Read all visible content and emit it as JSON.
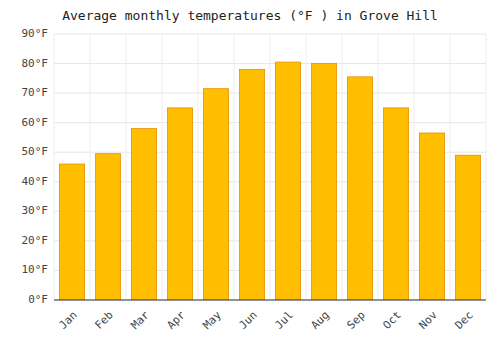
{
  "chart_data": {
    "type": "bar",
    "title": "Average monthly temperatures (°F ) in Grove Hill",
    "categories": [
      "Jan",
      "Feb",
      "Mar",
      "Apr",
      "May",
      "Jun",
      "Jul",
      "Aug",
      "Sep",
      "Oct",
      "Nov",
      "Dec"
    ],
    "values": [
      46,
      49.5,
      58,
      65,
      71.5,
      78,
      80.5,
      80,
      75.5,
      65,
      56.5,
      49
    ],
    "color": "#FFBE00",
    "ylim": [
      0,
      90
    ],
    "yticks": [
      {
        "value": 0,
        "label": "0°F"
      },
      {
        "value": 10,
        "label": "10°F"
      },
      {
        "value": 20,
        "label": "20°F"
      },
      {
        "value": 30,
        "label": "30°F"
      },
      {
        "value": 40,
        "label": "40°F"
      },
      {
        "value": 50,
        "label": "50°F"
      },
      {
        "value": 60,
        "label": "60°F"
      },
      {
        "value": 70,
        "label": "70°F"
      },
      {
        "value": 80,
        "label": "80°F"
      },
      {
        "value": 90,
        "label": "90°F"
      }
    ],
    "grid": true
  }
}
